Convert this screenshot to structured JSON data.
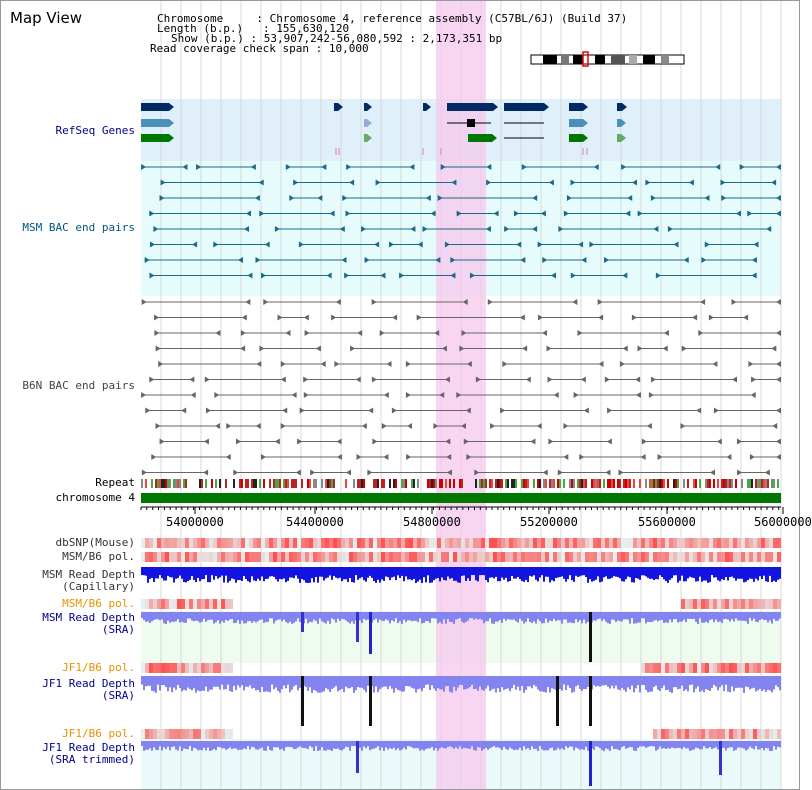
{
  "page": {
    "title": "Map View",
    "info": {
      "chromosome_key": "Chromosome",
      "chromosome_value": "Chromosome 4, reference assembly (C57BL/6J) (Build 37)",
      "length_key": "Length (b.p.)",
      "length_value": "155,630,120",
      "show_key": "Show (b.p.)",
      "show_value": "53,907,242-56,080,592 : 2,173,351 bp",
      "coverage_key": "Read coverage check span",
      "coverage_value": "10,000"
    },
    "tracks": {
      "refseq": "RefSeq Genes",
      "msm_bac": "MSM BAC end pairs",
      "b6n_bac": "B6N BAC end pairs",
      "repeat": "Repeat",
      "chromosome": "chromosome 4",
      "dbsnp": "dbSNP(Mouse)",
      "msm_b6_pol": "MSM/B6 pol.",
      "msm_read_depth_cap_1": "MSM Read Depth",
      "msm_read_depth_cap_2": "(Capillary)",
      "msm_b6_pol_2": "MSM/B6 pol.",
      "msm_read_depth_sra_1": "MSM Read Depth",
      "msm_read_depth_sra_2": "(SRA)",
      "jf1_b6_pol": "JF1/B6 pol.",
      "jf1_read_depth_sra_1": "JF1 Read Depth",
      "jf1_read_depth_sra_2": "(SRA)",
      "jf1_b6_pol_2": "JF1/B6 pol.",
      "jf1_read_depth_trim_1": "JF1 Read Depth",
      "jf1_read_depth_trim_2": "(SRA trimmed)"
    },
    "ruler_ticks": [
      "54000000",
      "54400000",
      "54800000",
      "55200000",
      "55600000",
      "56000000"
    ],
    "colors": {
      "blue_label": "#00008b",
      "teal_label": "#00577a",
      "orange_label": "#e89300",
      "highlight": "#f8d8f0",
      "chromosome_bar": "#007700"
    }
  }
}
